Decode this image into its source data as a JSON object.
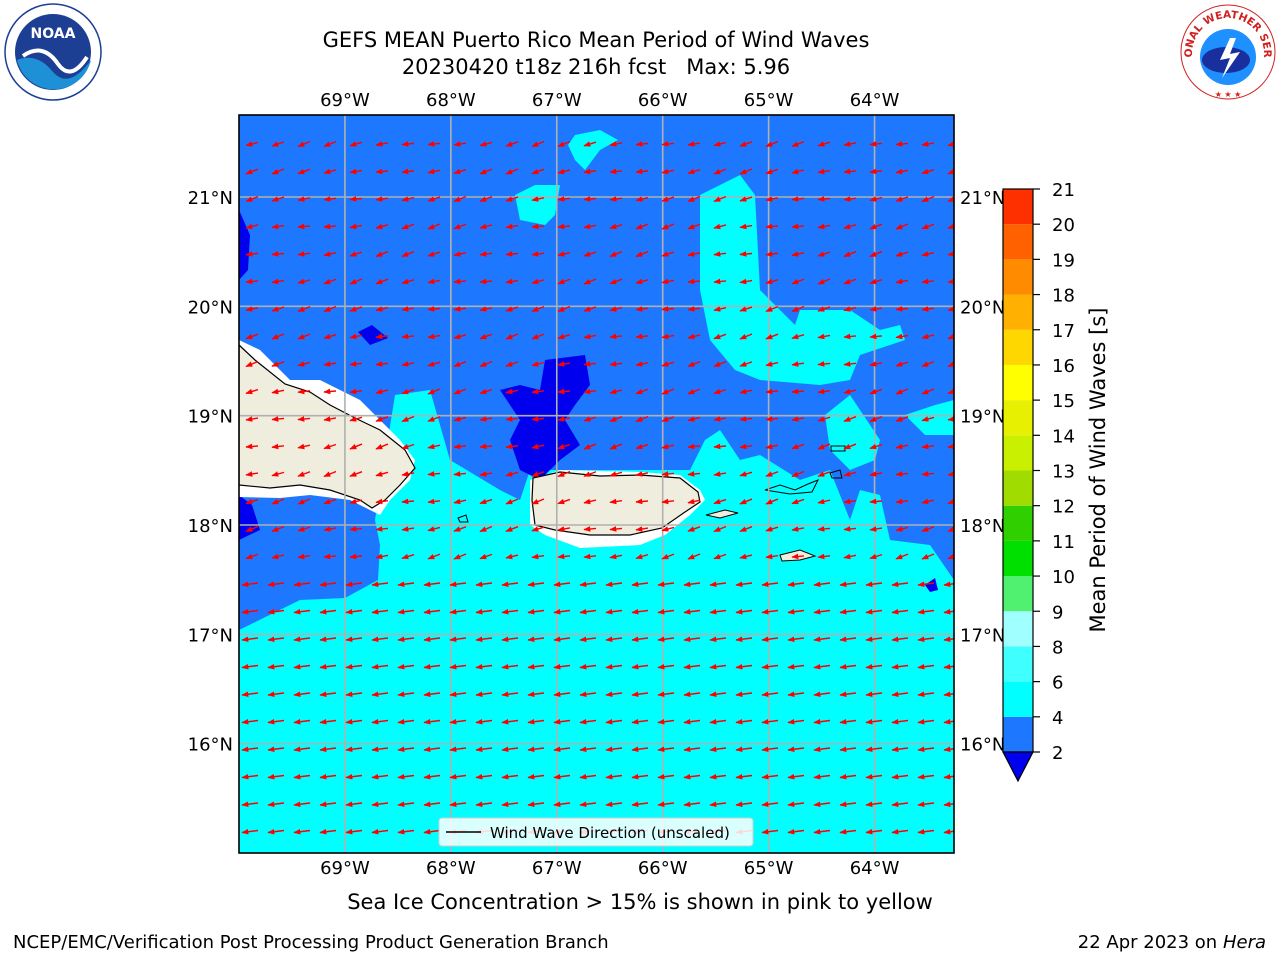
{
  "title": {
    "line1": "GEFS MEAN Puerto Rico Mean Period of Wind Waves",
    "line2": "20230420 t18z 216h fcst   Max: 5.96"
  },
  "map": {
    "lon_labels": [
      "69°W",
      "68°W",
      "67°W",
      "66°W",
      "65°W",
      "64°W"
    ],
    "lat_labels": [
      "21°N",
      "20°N",
      "19°N",
      "18°N",
      "17°N",
      "16°N"
    ],
    "lon_values": [
      -69,
      -68,
      -67,
      -66,
      -65,
      -64
    ],
    "lat_values": [
      21,
      20,
      19,
      18,
      17,
      16
    ],
    "lon_range": [
      -70.0,
      -63.25
    ],
    "lat_range": [
      15.0,
      21.75
    ],
    "legend_label": "Wind Wave Direction (unscaled)",
    "arrow_color": "#ff0000",
    "land_color": "#efedde"
  },
  "colorbar": {
    "label": "Mean Period of Wind Waves [s]",
    "ticks": [
      "2",
      "4",
      "6",
      "8",
      "9",
      "10",
      "11",
      "12",
      "13",
      "14",
      "15",
      "16",
      "17",
      "18",
      "19",
      "20",
      "21"
    ],
    "colors": [
      "#1e78ff",
      "#00ffff",
      "#40ffff",
      "#a0ffff",
      "#50f070",
      "#00e000",
      "#30d000",
      "#a0dc00",
      "#c8f000",
      "#e6f000",
      "#ffff00",
      "#ffd700",
      "#ffb000",
      "#ff8c00",
      "#ff6000",
      "#ff3000",
      "#ff0000"
    ],
    "under_color": "#0000ee"
  },
  "sea_ice_note": "Sea Ice Concentration > 15% is shown in pink to yellow",
  "footer": {
    "left": "NCEP/EMC/Verification Post Processing Product Generation Branch",
    "right_date": "22 Apr 2023 on ",
    "right_machine": "Hera"
  },
  "logos": {
    "noaa_text": "NOAA",
    "nws_text": "NATIONAL WEATHER SERVICE"
  }
}
